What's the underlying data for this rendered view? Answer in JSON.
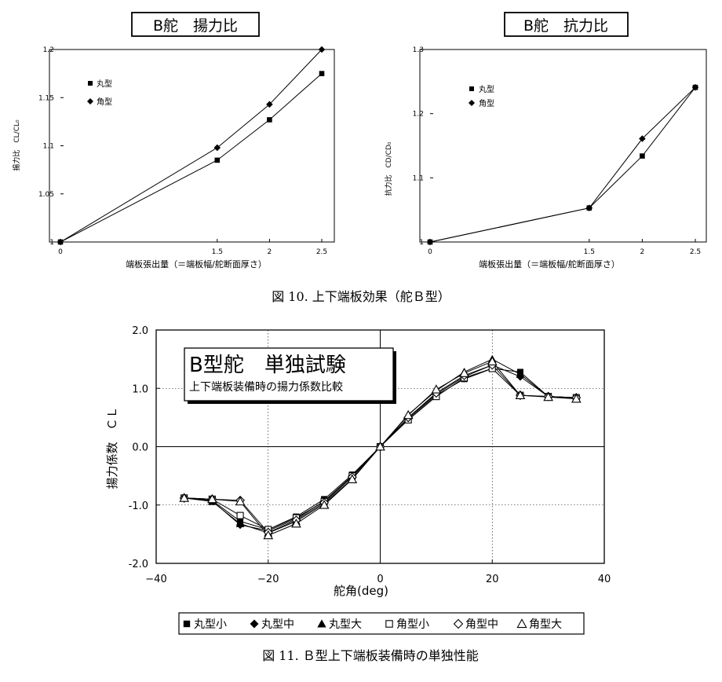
{
  "chart_data": [
    {
      "type": "line",
      "title": "B舵　揚力比",
      "xlabel": "端板張出量（＝端板幅/舵断面厚さ）",
      "ylabel": "揚力比　CL/CL₀",
      "x": [
        0,
        1.5,
        2,
        2.5
      ],
      "xticks": [
        "0",
        "1.5",
        "2",
        "2.5"
      ],
      "yticks": [
        "1",
        "1.05",
        "1.1",
        "1.15",
        "1.2"
      ],
      "xlim": [
        0,
        2.5
      ],
      "ylim": [
        1.0,
        1.2
      ],
      "legend_position": "top-left",
      "series": [
        {
          "name": "丸型",
          "marker": "square",
          "values": [
            1.0,
            1.085,
            1.127,
            1.175
          ]
        },
        {
          "name": "角型",
          "marker": "diamond",
          "values": [
            1.0,
            1.098,
            1.143,
            1.2
          ]
        }
      ]
    },
    {
      "type": "line",
      "title": "B舵　抗力比",
      "xlabel": "端板張出量（＝端板幅/舵断面厚さ）",
      "ylabel": "抗力比　CD/CD₀",
      "x": [
        0,
        1.5,
        2,
        2.5
      ],
      "xticks": [
        "0",
        "1.5",
        "2",
        "2.5"
      ],
      "yticks": [
        "1",
        "1.1",
        "1.2",
        "1.3"
      ],
      "xlim": [
        0,
        2.5
      ],
      "ylim": [
        1.0,
        1.3
      ],
      "legend_position": "top-left",
      "series": [
        {
          "name": "丸型",
          "marker": "square",
          "values": [
            1.0,
            1.053,
            1.134,
            1.241
          ]
        },
        {
          "name": "角型",
          "marker": "diamond",
          "values": [
            1.0,
            1.053,
            1.161,
            1.241
          ]
        }
      ]
    },
    {
      "type": "line",
      "title": "B型舵　単独試験",
      "subtitle": "上下端板装備時の揚力係数比較",
      "xlabel": "舵角(deg)",
      "ylabel": "揚力係数　ＣＬ",
      "x": [
        -35,
        -30,
        -25,
        -20,
        -15,
        -10,
        -5,
        0,
        5,
        10,
        15,
        20,
        25,
        30,
        35
      ],
      "xticks": [
        "−40",
        "−20",
        "0",
        "20",
        "40"
      ],
      "xtick_values": [
        -40,
        -20,
        0,
        20,
        40
      ],
      "yticks": [
        "2.0",
        "1.0",
        "0.0",
        "-1.0",
        "-2.0"
      ],
      "ytick_values": [
        2,
        1,
        0,
        -1,
        -2
      ],
      "xlim": [
        -40,
        40
      ],
      "ylim": [
        -2.0,
        2.0
      ],
      "grid": true,
      "legend_position": "bottom",
      "series": [
        {
          "name": "丸型小",
          "marker": "filled-square",
          "values": [
            -0.88,
            -0.92,
            -1.28,
            -1.42,
            -1.2,
            -0.9,
            -0.48,
            0.0,
            0.48,
            0.88,
            1.16,
            1.34,
            1.28,
            0.86,
            0.84
          ]
        },
        {
          "name": "丸型中",
          "marker": "filled-diamond",
          "values": [
            -0.88,
            -0.93,
            -1.34,
            -1.44,
            -1.24,
            -0.93,
            -0.5,
            0.0,
            0.5,
            0.9,
            1.2,
            1.4,
            1.2,
            0.86,
            0.84
          ]
        },
        {
          "name": "丸型大",
          "marker": "filled-triangle",
          "values": [
            -0.88,
            -0.94,
            -1.32,
            -1.48,
            -1.28,
            -0.98,
            -0.55,
            0.0,
            0.55,
            0.96,
            1.28,
            1.5,
            1.24,
            0.86,
            0.82
          ]
        },
        {
          "name": "角型小",
          "marker": "open-square",
          "values": [
            -0.88,
            -0.9,
            -1.18,
            -1.42,
            -1.22,
            -0.94,
            -0.5,
            0.0,
            0.46,
            0.86,
            1.18,
            1.34,
            0.88,
            0.86,
            0.84
          ]
        },
        {
          "name": "角型中",
          "marker": "open-diamond",
          "values": [
            -0.88,
            -0.9,
            -0.92,
            -1.47,
            -1.26,
            -0.96,
            -0.52,
            0.0,
            0.5,
            0.92,
            1.22,
            1.4,
            0.88,
            0.86,
            0.84
          ]
        },
        {
          "name": "角型大",
          "marker": "open-triangle",
          "values": [
            -0.88,
            -0.9,
            -0.94,
            -1.52,
            -1.32,
            -1.0,
            -0.56,
            0.0,
            0.54,
            0.98,
            1.26,
            1.46,
            0.88,
            0.85,
            0.82
          ]
        }
      ]
    }
  ],
  "captions": {
    "fig10": "図 10.  上下端板効果（舵Ｂ型）",
    "fig11": "図 11. Ｂ型上下端板装備時の単独性能"
  }
}
